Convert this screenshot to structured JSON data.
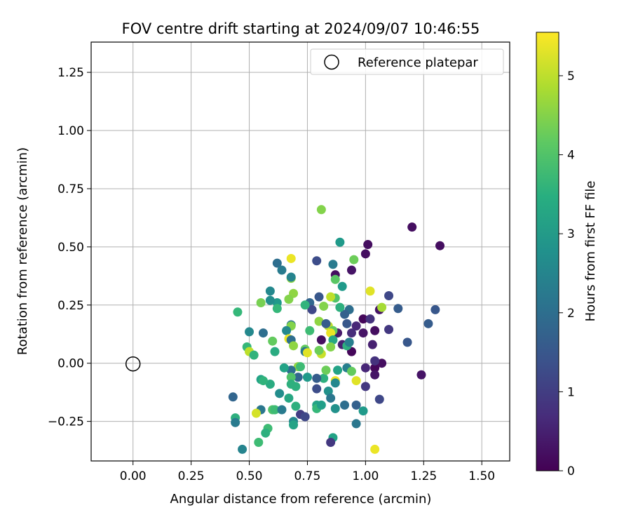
{
  "chart_data": {
    "type": "scatter",
    "title": "FOV centre drift starting at 2024/09/07 10:46:55",
    "xlabel": "Angular distance from reference (arcmin)",
    "ylabel": "Rotation from reference (arcmin)",
    "xlim": [
      -0.18,
      1.62
    ],
    "ylim": [
      -0.42,
      1.38
    ],
    "xticks": [
      0.0,
      0.25,
      0.5,
      0.75,
      1.0,
      1.25,
      1.5
    ],
    "xtick_labels": [
      "0.00",
      "0.25",
      "0.50",
      "0.75",
      "1.00",
      "1.25",
      "1.50"
    ],
    "yticks": [
      -0.25,
      0.0,
      0.25,
      0.5,
      0.75,
      1.0,
      1.25
    ],
    "ytick_labels": [
      "−0.25",
      "0.00",
      "0.25",
      "0.50",
      "0.75",
      "1.00",
      "1.25"
    ],
    "grid": true,
    "legend": {
      "position": "top-right",
      "entries": [
        "Reference platepar"
      ]
    },
    "reference_point": {
      "x": 0.0,
      "y": 0.0
    },
    "colorbar": {
      "label": "Hours from first FF file",
      "range": [
        0,
        5.55
      ],
      "ticks": [
        0,
        1,
        2,
        3,
        4,
        5
      ],
      "tick_labels": [
        "0",
        "1",
        "2",
        "3",
        "4",
        "5"
      ],
      "colormap": "viridis"
    },
    "points": [
      {
        "x": 1.2,
        "y": 0.585,
        "c": 0.2
      },
      {
        "x": 1.32,
        "y": 0.505,
        "c": 0.2
      },
      {
        "x": 1.01,
        "y": 0.51,
        "c": 0.2
      },
      {
        "x": 1.0,
        "y": 0.47,
        "c": 0.2
      },
      {
        "x": 0.94,
        "y": 0.4,
        "c": 0.3
      },
      {
        "x": 0.87,
        "y": 0.38,
        "c": 0.2
      },
      {
        "x": 0.99,
        "y": 0.19,
        "c": 0.1
      },
      {
        "x": 1.02,
        "y": 0.19,
        "c": 0.8
      },
      {
        "x": 1.06,
        "y": 0.23,
        "c": 0.3
      },
      {
        "x": 1.07,
        "y": 0.24,
        "c": 4.8
      },
      {
        "x": 1.04,
        "y": 0.14,
        "c": 0.2
      },
      {
        "x": 0.99,
        "y": 0.13,
        "c": 0.3
      },
      {
        "x": 0.96,
        "y": 0.16,
        "c": 0.6
      },
      {
        "x": 0.94,
        "y": 0.13,
        "c": 0.7
      },
      {
        "x": 0.88,
        "y": 0.13,
        "c": 0.4
      },
      {
        "x": 0.81,
        "y": 0.1,
        "c": 0.2
      },
      {
        "x": 0.9,
        "y": 0.08,
        "c": 0.5
      },
      {
        "x": 0.93,
        "y": 0.09,
        "c": 0.9
      },
      {
        "x": 0.94,
        "y": 0.05,
        "c": 0.1
      },
      {
        "x": 1.03,
        "y": 0.08,
        "c": 0.5
      },
      {
        "x": 1.04,
        "y": -0.02,
        "c": 0.1
      },
      {
        "x": 1.07,
        "y": 0.0,
        "c": 0.2
      },
      {
        "x": 1.04,
        "y": 0.01,
        "c": 0.8
      },
      {
        "x": 1.0,
        "y": -0.02,
        "c": 0.6
      },
      {
        "x": 1.04,
        "y": -0.05,
        "c": 0.3
      },
      {
        "x": 1.0,
        "y": -0.1,
        "c": 0.9
      },
      {
        "x": 1.06,
        "y": -0.155,
        "c": 1.2
      },
      {
        "x": 1.24,
        "y": -0.05,
        "c": 0.3
      },
      {
        "x": 1.18,
        "y": 0.09,
        "c": 1.5
      },
      {
        "x": 1.27,
        "y": 0.17,
        "c": 1.6
      },
      {
        "x": 1.3,
        "y": 0.23,
        "c": 1.5
      },
      {
        "x": 1.14,
        "y": 0.235,
        "c": 1.6
      },
      {
        "x": 1.1,
        "y": 0.29,
        "c": 1.2
      },
      {
        "x": 1.1,
        "y": 0.145,
        "c": 0.9
      },
      {
        "x": 1.02,
        "y": 0.31,
        "c": 5.3
      },
      {
        "x": 0.93,
        "y": 0.23,
        "c": 2.0
      },
      {
        "x": 0.91,
        "y": 0.21,
        "c": 1.7
      },
      {
        "x": 0.92,
        "y": 0.17,
        "c": 1.5
      },
      {
        "x": 0.79,
        "y": 0.44,
        "c": 1.3
      },
      {
        "x": 0.81,
        "y": 0.66,
        "c": 4.5
      },
      {
        "x": 0.89,
        "y": 0.52,
        "c": 3.0
      },
      {
        "x": 0.95,
        "y": 0.445,
        "c": 4.3
      },
      {
        "x": 0.86,
        "y": 0.425,
        "c": 2.3
      },
      {
        "x": 0.87,
        "y": 0.36,
        "c": 4.1
      },
      {
        "x": 0.9,
        "y": 0.33,
        "c": 3.0
      },
      {
        "x": 0.87,
        "y": 0.28,
        "c": 4.0
      },
      {
        "x": 0.85,
        "y": 0.285,
        "c": 5.0
      },
      {
        "x": 0.89,
        "y": 0.24,
        "c": 3.5
      },
      {
        "x": 0.82,
        "y": 0.245,
        "c": 4.5
      },
      {
        "x": 0.8,
        "y": 0.285,
        "c": 1.5
      },
      {
        "x": 0.76,
        "y": 0.26,
        "c": 1.8
      },
      {
        "x": 0.77,
        "y": 0.23,
        "c": 1.2
      },
      {
        "x": 0.74,
        "y": 0.25,
        "c": 3.6
      },
      {
        "x": 0.68,
        "y": 0.45,
        "c": 5.4
      },
      {
        "x": 0.68,
        "y": 0.365,
        "c": 4.6
      },
      {
        "x": 0.68,
        "y": 0.37,
        "c": 2.5
      },
      {
        "x": 0.62,
        "y": 0.43,
        "c": 2.0
      },
      {
        "x": 0.64,
        "y": 0.4,
        "c": 2.3
      },
      {
        "x": 0.59,
        "y": 0.31,
        "c": 2.6
      },
      {
        "x": 0.69,
        "y": 0.3,
        "c": 4.6
      },
      {
        "x": 0.67,
        "y": 0.275,
        "c": 4.5
      },
      {
        "x": 0.62,
        "y": 0.26,
        "c": 3.0
      },
      {
        "x": 0.59,
        "y": 0.27,
        "c": 2.7
      },
      {
        "x": 0.55,
        "y": 0.26,
        "c": 4.4
      },
      {
        "x": 0.62,
        "y": 0.235,
        "c": 3.7
      },
      {
        "x": 0.45,
        "y": 0.22,
        "c": 3.7
      },
      {
        "x": 0.8,
        "y": 0.18,
        "c": 4.6
      },
      {
        "x": 0.84,
        "y": 0.16,
        "c": 5.0
      },
      {
        "x": 0.86,
        "y": 0.14,
        "c": 4.2
      },
      {
        "x": 0.85,
        "y": 0.13,
        "c": 5.4
      },
      {
        "x": 0.83,
        "y": 0.17,
        "c": 1.6
      },
      {
        "x": 0.76,
        "y": 0.14,
        "c": 3.8
      },
      {
        "x": 0.68,
        "y": 0.165,
        "c": 2.2
      },
      {
        "x": 0.68,
        "y": 0.16,
        "c": 4.5
      },
      {
        "x": 0.66,
        "y": 0.14,
        "c": 2.6
      },
      {
        "x": 0.56,
        "y": 0.13,
        "c": 2.0
      },
      {
        "x": 0.5,
        "y": 0.135,
        "c": 2.6
      },
      {
        "x": 0.6,
        "y": 0.095,
        "c": 4.2
      },
      {
        "x": 0.67,
        "y": 0.105,
        "c": 5.4
      },
      {
        "x": 0.68,
        "y": 0.1,
        "c": 2.0
      },
      {
        "x": 0.69,
        "y": 0.075,
        "c": 4.6
      },
      {
        "x": 0.61,
        "y": 0.05,
        "c": 3.4
      },
      {
        "x": 0.49,
        "y": 0.07,
        "c": 3.7
      },
      {
        "x": 0.5,
        "y": 0.05,
        "c": 5.0
      },
      {
        "x": 0.52,
        "y": 0.035,
        "c": 3.6
      },
      {
        "x": 0.74,
        "y": 0.06,
        "c": 4.2
      },
      {
        "x": 0.74,
        "y": 0.05,
        "c": 2.2
      },
      {
        "x": 0.75,
        "y": 0.045,
        "c": 5.3
      },
      {
        "x": 0.81,
        "y": 0.04,
        "c": 5.1
      },
      {
        "x": 0.8,
        "y": 0.055,
        "c": 4.3
      },
      {
        "x": 0.86,
        "y": 0.1,
        "c": 3.3
      },
      {
        "x": 0.85,
        "y": 0.07,
        "c": 4.5
      },
      {
        "x": 0.92,
        "y": 0.075,
        "c": 3.5
      },
      {
        "x": 0.93,
        "y": 0.09,
        "c": 2.4
      },
      {
        "x": 0.88,
        "y": -0.03,
        "c": 3.2
      },
      {
        "x": 0.92,
        "y": -0.02,
        "c": 2.4
      },
      {
        "x": 0.94,
        "y": -0.035,
        "c": 4.2
      },
      {
        "x": 0.96,
        "y": -0.075,
        "c": 5.3
      },
      {
        "x": 0.87,
        "y": -0.075,
        "c": 5.4
      },
      {
        "x": 0.87,
        "y": -0.085,
        "c": 2.6
      },
      {
        "x": 0.82,
        "y": -0.065,
        "c": 3.5
      },
      {
        "x": 0.83,
        "y": -0.03,
        "c": 4.3
      },
      {
        "x": 0.84,
        "y": -0.12,
        "c": 2.8
      },
      {
        "x": 0.85,
        "y": -0.15,
        "c": 2.2
      },
      {
        "x": 0.79,
        "y": -0.065,
        "c": 1.6
      },
      {
        "x": 0.79,
        "y": -0.11,
        "c": 1.3
      },
      {
        "x": 0.75,
        "y": -0.06,
        "c": 3.0
      },
      {
        "x": 0.71,
        "y": -0.015,
        "c": 4.6
      },
      {
        "x": 0.72,
        "y": -0.015,
        "c": 3.8
      },
      {
        "x": 0.71,
        "y": -0.06,
        "c": 1.8
      },
      {
        "x": 0.68,
        "y": -0.03,
        "c": 2.0
      },
      {
        "x": 0.68,
        "y": -0.06,
        "c": 4.0
      },
      {
        "x": 0.65,
        "y": -0.02,
        "c": 3.2
      },
      {
        "x": 0.68,
        "y": -0.09,
        "c": 3.5
      },
      {
        "x": 0.7,
        "y": -0.1,
        "c": 3.5
      },
      {
        "x": 0.67,
        "y": -0.15,
        "c": 3.3
      },
      {
        "x": 0.63,
        "y": -0.13,
        "c": 2.7
      },
      {
        "x": 0.59,
        "y": -0.09,
        "c": 3.4
      },
      {
        "x": 0.55,
        "y": -0.07,
        "c": 3.2
      },
      {
        "x": 0.56,
        "y": -0.075,
        "c": 3.6
      },
      {
        "x": 0.43,
        "y": -0.145,
        "c": 1.8
      },
      {
        "x": 0.55,
        "y": -0.2,
        "c": 2.2
      },
      {
        "x": 0.6,
        "y": -0.2,
        "c": 4.0
      },
      {
        "x": 0.61,
        "y": -0.2,
        "c": 3.8
      },
      {
        "x": 0.64,
        "y": -0.2,
        "c": 2.3
      },
      {
        "x": 0.7,
        "y": -0.185,
        "c": 3.5
      },
      {
        "x": 0.72,
        "y": -0.22,
        "c": 1.0
      },
      {
        "x": 0.74,
        "y": -0.23,
        "c": 1.2
      },
      {
        "x": 0.69,
        "y": -0.25,
        "c": 2.6
      },
      {
        "x": 0.69,
        "y": -0.265,
        "c": 3.2
      },
      {
        "x": 0.53,
        "y": -0.215,
        "c": 5.2
      },
      {
        "x": 0.58,
        "y": -0.28,
        "c": 3.8
      },
      {
        "x": 0.57,
        "y": -0.3,
        "c": 3.5
      },
      {
        "x": 0.54,
        "y": -0.34,
        "c": 3.8
      },
      {
        "x": 0.44,
        "y": -0.235,
        "c": 3.5
      },
      {
        "x": 0.44,
        "y": -0.255,
        "c": 2.3
      },
      {
        "x": 0.47,
        "y": -0.37,
        "c": 2.5
      },
      {
        "x": 0.79,
        "y": -0.18,
        "c": 3.2
      },
      {
        "x": 0.79,
        "y": -0.195,
        "c": 3.7
      },
      {
        "x": 0.81,
        "y": -0.18,
        "c": 3.1
      },
      {
        "x": 0.87,
        "y": -0.195,
        "c": 2.8
      },
      {
        "x": 0.91,
        "y": -0.18,
        "c": 2.0
      },
      {
        "x": 0.96,
        "y": -0.18,
        "c": 1.7
      },
      {
        "x": 0.99,
        "y": -0.205,
        "c": 3.0
      },
      {
        "x": 0.96,
        "y": -0.26,
        "c": 2.2
      },
      {
        "x": 0.86,
        "y": -0.32,
        "c": 3.2
      },
      {
        "x": 0.85,
        "y": -0.34,
        "c": 0.9
      },
      {
        "x": 1.04,
        "y": -0.37,
        "c": 5.4
      }
    ]
  }
}
